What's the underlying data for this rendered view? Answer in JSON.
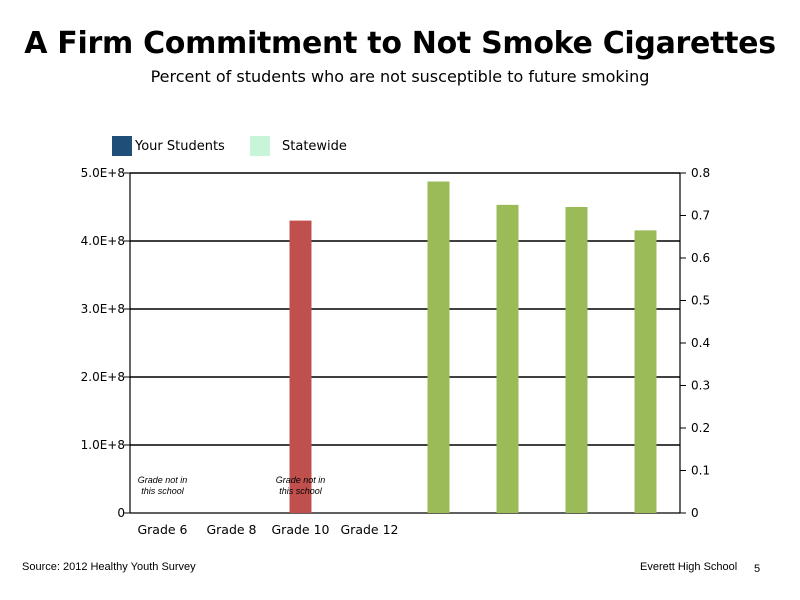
{
  "chart_data": {
    "type": "bar",
    "title": "A Firm Commitment to Not Smoke Cigarettes",
    "subtitle": "Percent of students who are not susceptible to future smoking",
    "categories": [
      "Grade 6",
      "Grade 8",
      "Grade 10",
      "Grade 12"
    ],
    "legend": [
      {
        "name": "Your Students",
        "color": "#1f4e79"
      },
      {
        "name": "Statewide",
        "color": "#c6f5d8"
      }
    ],
    "y_left": {
      "range": [
        0,
        500000000
      ],
      "ticks": [
        {
          "value": 0,
          "label": "0"
        },
        {
          "value": 100000000,
          "label": "1.0E+8"
        },
        {
          "value": 200000000,
          "label": "2.0E+8"
        },
        {
          "value": 300000000,
          "label": "3.0E+8"
        },
        {
          "value": 400000000,
          "label": "4.0E+8"
        },
        {
          "value": 500000000,
          "label": "5.0E+8"
        }
      ]
    },
    "y_right": {
      "range": [
        0,
        0.8
      ],
      "ticks": [
        {
          "value": 0,
          "label": "0"
        },
        {
          "value": 0.1,
          "label": "0.1"
        },
        {
          "value": 0.2,
          "label": "0.2"
        },
        {
          "value": 0.3,
          "label": "0.3"
        },
        {
          "value": 0.4,
          "label": "0.4"
        },
        {
          "value": 0.5,
          "label": "0.5"
        },
        {
          "value": 0.6,
          "label": "0.6"
        },
        {
          "value": 0.7,
          "label": "0.7"
        },
        {
          "value": 0.8,
          "label": "0.8"
        }
      ]
    },
    "grid": true,
    "series": [
      {
        "axis": "left",
        "color": "#c0504d",
        "points": [
          {
            "slot": 2,
            "value": 430000000
          }
        ]
      },
      {
        "axis": "right",
        "color": "#9bbb59",
        "points": [
          {
            "slot": 4,
            "value": 0.78
          },
          {
            "slot": 5,
            "value": 0.725
          },
          {
            "slot": 6,
            "value": 0.72
          },
          {
            "slot": 7,
            "value": 0.665
          }
        ]
      }
    ],
    "annotations": [
      {
        "slot": 0,
        "lines": [
          "Grade not in",
          "this school"
        ]
      },
      {
        "slot": 2,
        "lines": [
          "Grade not in",
          "this school"
        ]
      }
    ]
  },
  "footer": {
    "source": "Source: 2012 Healthy Youth Survey",
    "school": "Everett High School",
    "page": "5"
  }
}
